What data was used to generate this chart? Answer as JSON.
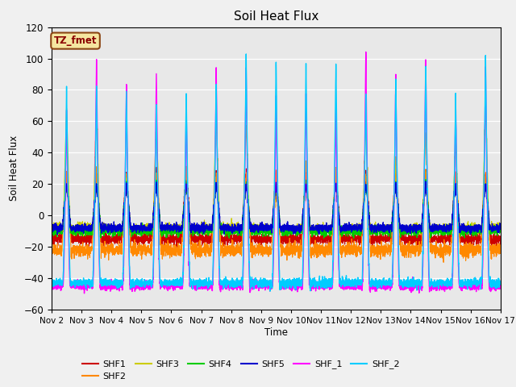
{
  "title": "Soil Heat Flux",
  "xlabel": "Time",
  "ylabel": "Soil Heat Flux",
  "ylim": [
    -60,
    120
  ],
  "xlim": [
    0,
    360
  ],
  "background_color": "#f0f0f0",
  "plot_bg_color": "#e8e8e8",
  "annotation_text": "TZ_fmet",
  "annotation_bg": "#f5e6a0",
  "annotation_border": "#8B4513",
  "annotation_text_color": "#8B0000",
  "series_colors": {
    "SHF1": "#cc0000",
    "SHF2": "#ff8800",
    "SHF3": "#cccc00",
    "SHF4": "#00cc00",
    "SHF5": "#0000cc",
    "SHF_1": "#ff00ff",
    "SHF_2": "#00ccff"
  },
  "xtick_labels": [
    "Nov 2",
    "Nov 3",
    "Nov 4",
    "Nov 5",
    "Nov 6",
    "Nov 7",
    "Nov 8",
    "Nov 9",
    "Nov 10",
    "Nov 11",
    "Nov 12",
    "Nov 13",
    "Nov 14",
    "Nov 15",
    "Nov 16",
    "Nov 17"
  ],
  "xtick_positions": [
    0,
    24,
    48,
    72,
    96,
    120,
    144,
    168,
    192,
    216,
    240,
    264,
    288,
    312,
    336,
    360
  ],
  "period": 24,
  "num_cycles": 15
}
